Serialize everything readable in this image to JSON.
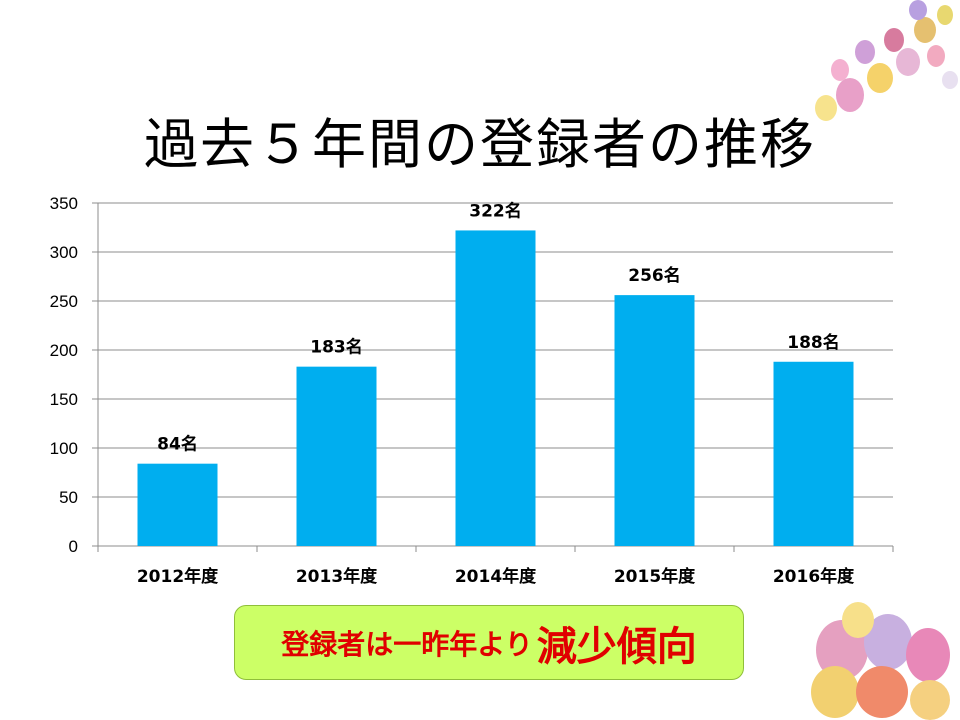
{
  "title": "過去５年間の登録者の推移",
  "callout": {
    "normal": "登録者は一昨年より",
    "emphasis": "減少傾向"
  },
  "colors": {
    "bar": "#00aeef",
    "callout_bg": "#ccff66",
    "callout_text": "#e00000"
  },
  "chart_data": {
    "type": "bar",
    "title": "",
    "xlabel": "",
    "ylabel": "",
    "categories": [
      "2012年度",
      "2013年度",
      "2014年度",
      "2015年度",
      "2016年度"
    ],
    "values": [
      84,
      183,
      322,
      256,
      188
    ],
    "data_labels": [
      "84名",
      "183名",
      "322名",
      "256名",
      "188名"
    ],
    "ylim": [
      0,
      350
    ],
    "yticks": [
      0,
      50,
      100,
      150,
      200,
      250,
      300,
      350
    ],
    "grid": true,
    "legend": "none"
  },
  "decorations": [
    {
      "name": "candy-eggs-top-right-image"
    },
    {
      "name": "candy-eggs-bottom-right-image"
    }
  ]
}
